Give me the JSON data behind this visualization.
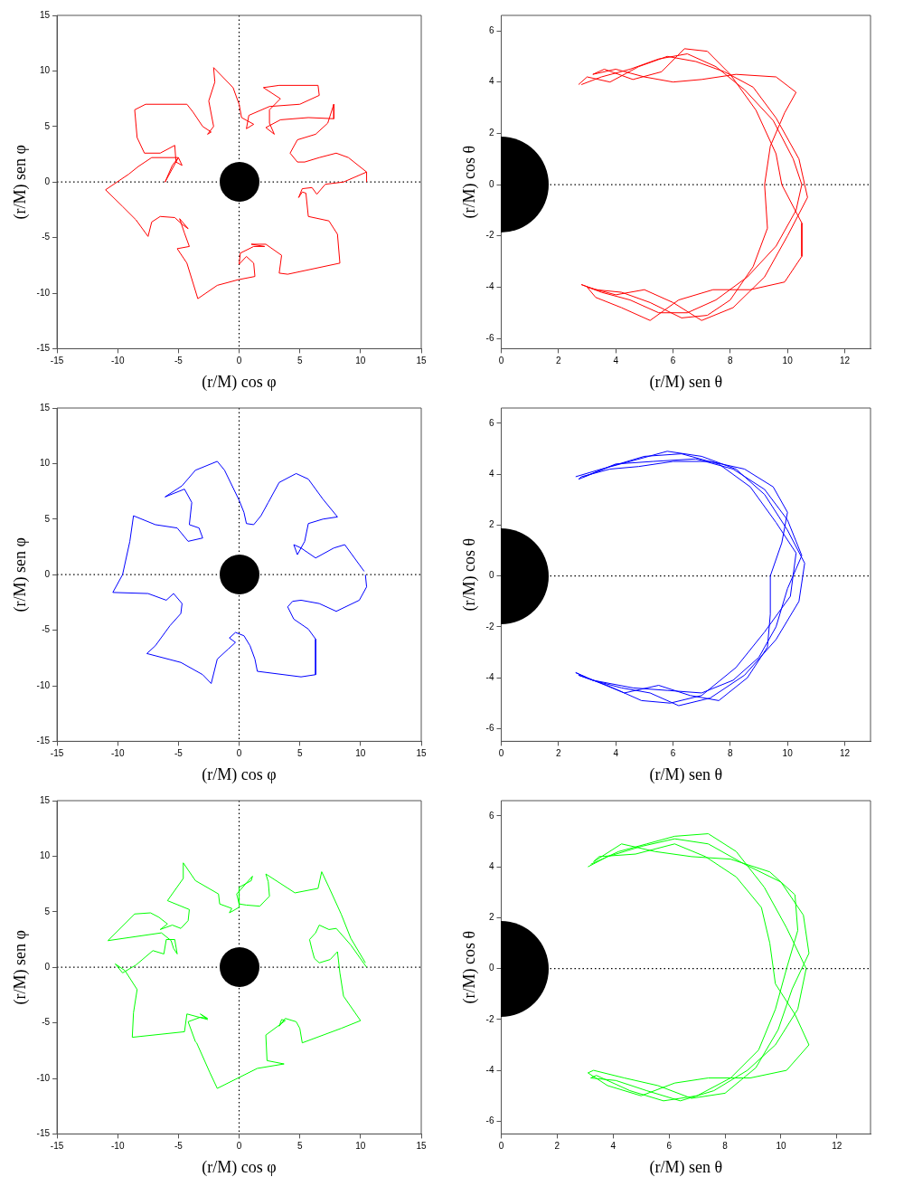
{
  "chart_data": [
    {
      "type": "line",
      "xlabel": "(r/M) cos φ",
      "ylabel": "(r/M) sen φ",
      "xlim": [
        -15,
        15
      ],
      "ylim": [
        -15,
        15
      ],
      "xticks": [
        -15,
        -10,
        -5,
        0,
        5,
        10,
        15
      ],
      "yticks": [
        -15,
        -10,
        -5,
        0,
        5,
        10,
        15
      ],
      "grid": false,
      "legend": false,
      "marker": "none",
      "line_style": "solid",
      "ref_lines": [
        {
          "axis": "x",
          "value": 0,
          "line_style": "dotted",
          "color": "#000000"
        },
        {
          "axis": "y",
          "value": 0,
          "line_style": "dotted",
          "color": "#000000"
        }
      ],
      "series": [
        {
          "color": "#ff0000",
          "x": [
            10.5,
            10.5,
            9,
            8,
            6.6,
            5.4,
            4.8,
            4.2,
            4.8,
            6.3,
            7.3,
            7.8,
            7.8,
            5.7,
            3.4,
            2.2,
            2.9,
            2.5,
            2.5,
            3.4,
            2,
            3.3,
            6.5,
            6.6,
            5,
            2.5,
            0.8,
            0.6,
            1.2,
            0.2,
            0,
            -0.5,
            -2.1,
            -2,
            -2.5,
            -2.1,
            -2.6,
            -2.3,
            -3,
            -3.8,
            -4.3,
            -7.7,
            -8.6,
            -8.4,
            -7.8,
            -6.5,
            -5.3,
            -5.2,
            -4.7,
            -5,
            -5.5,
            -6.1,
            -5,
            -7.2,
            -8.3,
            -9.1,
            -11,
            -9.6,
            -8.5,
            -7.5,
            -7.2,
            -6.5,
            -5.3,
            -4.7,
            -4.2,
            -4.9,
            -4.5,
            -4.1,
            -5.1,
            -4.3,
            -3.4,
            -1.8,
            -0.1,
            1.3,
            1.2,
            0.6,
            0,
            0.1,
            1.2,
            2.1,
            1,
            2.2,
            3.5,
            3.3,
            4,
            8.3,
            8.1,
            7.4,
            5.7,
            5.5,
            5.2,
            4.9,
            5.2,
            6,
            6.4,
            7.1,
            8.6,
            10.5
          ],
          "values": [
            0,
            0.9,
            2.2,
            2.6,
            2.2,
            1.8,
            1.8,
            2.6,
            3.8,
            4.3,
            5.3,
            7,
            5.7,
            5.8,
            5.6,
            4.9,
            4.3,
            5.3,
            6.5,
            7.5,
            8.5,
            8.7,
            8.7,
            7.8,
            7,
            6.8,
            6,
            4.8,
            5.2,
            5.8,
            7,
            8.5,
            10.3,
            9,
            7.3,
            5,
            4.3,
            4.5,
            5,
            6.3,
            7,
            7,
            6.5,
            4,
            2.6,
            2.6,
            3.3,
            1.8,
            1.5,
            2.2,
            1.5,
            0,
            2.2,
            2.2,
            1.4,
            0.7,
            -0.7,
            -2.2,
            -3.4,
            -4.9,
            -3.6,
            -3.1,
            -3.2,
            -3.8,
            -4.2,
            -3.3,
            -4.6,
            -5.8,
            -6,
            -7.3,
            -10.5,
            -9.3,
            -8.8,
            -8.5,
            -7.3,
            -6.7,
            -7.4,
            -6.4,
            -5.8,
            -5.8,
            -5.6,
            -5.6,
            -6.6,
            -8.2,
            -8.3,
            -7.3,
            -4.7,
            -3.5,
            -3.1,
            -1,
            -0.9,
            -1.4,
            -0.6,
            -0.5,
            -1.1,
            -0.2,
            0,
            0.9
          ]
        }
      ]
    },
    {
      "type": "line",
      "xlabel": "(r/M) sen θ",
      "ylabel": "(r/M) cos θ",
      "xlim": [
        0,
        12.9
      ],
      "ylim": [
        -6.4,
        6.6
      ],
      "xticks": [
        0,
        2,
        4,
        6,
        8,
        10,
        12
      ],
      "yticks": [
        -6,
        -4,
        -2,
        0,
        2,
        4,
        6
      ],
      "grid": false,
      "legend": false,
      "marker": "none",
      "line_style": "solid",
      "ref_lines": [
        {
          "axis": "y",
          "value": 0,
          "line_style": "dotted",
          "color": "#000000"
        }
      ],
      "series": [
        {
          "color": "#ff0000",
          "x": [
            2.8,
            3.5,
            4.5,
            5.5,
            6.5,
            7.5,
            8.5,
            9.5,
            10.2,
            10.5,
            10.3,
            9.6,
            8.6,
            7.5,
            6.5,
            5.5,
            4.5,
            3.5,
            2.8,
            3.3,
            4.2,
            5.2,
            6.3,
            7.2,
            8,
            8.8,
            9.3,
            9.2,
            9.4,
            9.9,
            10.3,
            9.6,
            8.2,
            7,
            6,
            5,
            4,
            3.2,
            3.6,
            4.6,
            5.6,
            6.4,
            7.2,
            8,
            8.9,
            9.6,
            9.8,
            10.5,
            10.5,
            9.9,
            8.7,
            7.4,
            6.2,
            5.2,
            4.2,
            3.3,
            3,
            4,
            5,
            6,
            7,
            8.1,
            9.2,
            10,
            10.7,
            10.4,
            9.6,
            8.8,
            7.8,
            6.8,
            5.8,
            4.8,
            3.8,
            3,
            2.7
          ],
          "values": [
            3.9,
            4.2,
            4.5,
            4.9,
            5.1,
            4.6,
            3.7,
            2.5,
            1,
            0,
            -1,
            -2.4,
            -3.6,
            -4.5,
            -5,
            -5,
            -4.5,
            -4.2,
            -3.9,
            -4.1,
            -4.2,
            -4.6,
            -5.2,
            -5.1,
            -4.5,
            -3.2,
            -1.7,
            0,
            1.5,
            2.8,
            3.6,
            4.2,
            4.3,
            4.1,
            4,
            4.2,
            4.5,
            4.3,
            4.5,
            4.1,
            4.4,
            5.3,
            5.2,
            4.3,
            2.9,
            1.2,
            0,
            -1.5,
            -2.8,
            -3.8,
            -4.1,
            -4.1,
            -4.5,
            -5.3,
            -4.8,
            -4.4,
            -4,
            -4.3,
            -4.1,
            -4.6,
            -5.3,
            -4.8,
            -3.6,
            -2,
            -0.5,
            1,
            2.6,
            3.8,
            4.4,
            4.8,
            5,
            4.6,
            4,
            4.2,
            3.9
          ]
        }
      ]
    },
    {
      "type": "line",
      "xlabel": "(r/M) cos φ",
      "ylabel": "(r/M) sen φ",
      "xlim": [
        -15,
        15
      ],
      "ylim": [
        -15,
        15
      ],
      "xticks": [
        -15,
        -10,
        -5,
        0,
        5,
        10,
        15
      ],
      "yticks": [
        -15,
        -10,
        -5,
        0,
        5,
        10,
        15
      ],
      "grid": false,
      "legend": false,
      "marker": "none",
      "line_style": "solid",
      "ref_lines": [
        {
          "axis": "x",
          "value": 0,
          "line_style": "dotted",
          "color": "#000000"
        },
        {
          "axis": "y",
          "value": 0,
          "line_style": "dotted",
          "color": "#000000"
        }
      ],
      "series": [
        {
          "color": "#0000ff",
          "x": [
            10.4,
            10.5,
            9.9,
            8,
            6.6,
            5.1,
            4.4,
            4,
            4.5,
            5.7,
            6.3,
            6.3,
            5.1,
            1.5,
            1.3,
            0.9,
            0.4,
            -0.3,
            -0.8,
            -0.3,
            -0.9,
            -1.8,
            -2.3,
            -3,
            -4.8,
            -7.6,
            -6.9,
            -5.7,
            -4.8,
            -4.7,
            -5.4,
            -6,
            -7.5,
            -10.4,
            -9.6,
            -9,
            -8.7,
            -6.9,
            -5.1,
            -4.2,
            -3,
            -3.3,
            -4.1,
            -3.9,
            -4.5,
            -6.1,
            -4.7,
            -3.6,
            -1.8,
            -1.2,
            0,
            0.4,
            0.6,
            1.2,
            1.8,
            2.4,
            3.3,
            4.7,
            5.7,
            6.9,
            8.1,
            6.9,
            5.7,
            5.4,
            4.8,
            4.5,
            5.1,
            6.3,
            7.8,
            8.7,
            9.9,
            10.3
          ],
          "values": [
            0,
            -1.1,
            -2.3,
            -3.3,
            -2.6,
            -2.3,
            -2.4,
            -2.9,
            -4,
            -4.9,
            -5.8,
            -9,
            -9.2,
            -8.7,
            -7.6,
            -6.4,
            -5.5,
            -5.2,
            -5.7,
            -6.1,
            -6.7,
            -7.6,
            -9.8,
            -9,
            -7.9,
            -7.1,
            -6.4,
            -4.6,
            -3.5,
            -2.6,
            -1.7,
            -2.3,
            -1.7,
            -1.6,
            0,
            3,
            5.3,
            4.5,
            4.2,
            3,
            3.3,
            4.2,
            4.5,
            6.5,
            7.7,
            7,
            8,
            9.4,
            10.2,
            9.4,
            6.7,
            5.6,
            4.6,
            4.5,
            5.3,
            6.5,
            8.3,
            9.1,
            8.6,
            6.8,
            5.2,
            5,
            4.6,
            3,
            1.8,
            2.7,
            2.4,
            1.5,
            2.4,
            2.7,
            0.9,
            0.3
          ]
        }
      ]
    },
    {
      "type": "line",
      "xlabel": "(r/M) sen θ",
      "ylabel": "(r/M) cos θ",
      "xlim": [
        0,
        12.9
      ],
      "ylim": [
        -6.5,
        6.6
      ],
      "xticks": [
        0,
        2,
        4,
        6,
        8,
        10,
        12
      ],
      "yticks": [
        -6,
        -4,
        -2,
        0,
        2,
        4,
        6
      ],
      "grid": false,
      "legend": false,
      "marker": "none",
      "line_style": "solid",
      "ref_lines": [
        {
          "axis": "y",
          "value": 0,
          "line_style": "dotted",
          "color": "#000000"
        }
      ],
      "series": [
        {
          "color": "#0000ff",
          "x": [
            2.6,
            3.5,
            4.5,
            5.8,
            7,
            8.2,
            9.2,
            10,
            10.6,
            10.4,
            9.6,
            8.5,
            7.3,
            6.2,
            5.2,
            4.2,
            3.2,
            2.6,
            3,
            4.3,
            5.5,
            6.6,
            7.6,
            8.6,
            9.3,
            9.4,
            9.4,
            9.8,
            10,
            9.5,
            8.5,
            7.3,
            6,
            4.8,
            3.8,
            2.8,
            2.7,
            3.8,
            5,
            6.3,
            7.6,
            8.7,
            9.6,
            10.3,
            10.1,
            9.2,
            8.2,
            7,
            5.9,
            4.9,
            3.7,
            2.7,
            3.2,
            4.6,
            5.8,
            7,
            8.1,
            9,
            9.6,
            10,
            10.5,
            10,
            9.2,
            8.1,
            6.8,
            5.3,
            4,
            2.9
          ],
          "values": [
            3.9,
            4.2,
            4.5,
            4.9,
            4.7,
            4.2,
            3.2,
            1.8,
            0.5,
            -1,
            -2.5,
            -3.9,
            -4.8,
            -5.1,
            -4.6,
            -4.4,
            -4.1,
            -3.8,
            -4,
            -4.6,
            -4.3,
            -4.7,
            -4.9,
            -4,
            -2.8,
            -1.5,
            0,
            1.3,
            2.5,
            3.5,
            4.2,
            4.5,
            4.5,
            4.3,
            4.2,
            3.9,
            3.8,
            4.3,
            4.7,
            4.8,
            4.4,
            3.5,
            2.1,
            0.9,
            -0.8,
            -2.2,
            -3.6,
            -4.7,
            -5,
            -4.9,
            -4.3,
            -3.9,
            -4.1,
            -4.4,
            -4.5,
            -4.6,
            -4.1,
            -3.2,
            -2,
            -0.5,
            0.8,
            2.2,
            3.4,
            4.2,
            4.6,
            4.5,
            4.4,
            3.9
          ]
        }
      ]
    },
    {
      "type": "line",
      "xlabel": "(r/M) cos φ",
      "ylabel": "(r/M) sen φ",
      "xlim": [
        -15,
        15
      ],
      "ylim": [
        -15,
        15
      ],
      "xticks": [
        -15,
        -10,
        -5,
        0,
        5,
        10,
        15
      ],
      "yticks": [
        -15,
        -10,
        -5,
        0,
        5,
        10,
        15
      ],
      "grid": false,
      "legend": false,
      "marker": "none",
      "line_style": "solid",
      "ref_lines": [
        {
          "axis": "x",
          "value": 0,
          "line_style": "dotted",
          "color": "#000000"
        },
        {
          "axis": "y",
          "value": 0,
          "line_style": "dotted",
          "color": "#000000"
        }
      ],
      "series": [
        {
          "color": "#00ff00",
          "x": [
            10.5,
            9.2,
            8,
            7.4,
            6.6,
            6.3,
            5.8,
            6,
            6.2,
            6.6,
            7.5,
            8.1,
            8.3,
            8.6,
            10,
            8.4,
            5.2,
            5,
            4.7,
            3.8,
            3.3,
            3.5,
            3.8,
            2.2,
            2.3,
            3.7,
            1.5,
            -1.8,
            -2.4,
            -3.5,
            -3.6,
            -4.2,
            -3.2,
            -2.6,
            -3.2,
            -2.6,
            -4.3,
            -4.5,
            -8.8,
            -8.7,
            -8.4,
            -9.4,
            -10.2,
            -9.6,
            -8.5,
            -7.1,
            -6.2,
            -6,
            -5.3,
            -5.1,
            -5.4,
            -5.6,
            -6.4,
            -10.8,
            -8.6,
            -7.3,
            -6.6,
            -5.9,
            -6.5,
            -5.5,
            -4.8,
            -4.2,
            -4.1,
            -5.9,
            -4.6,
            -4.6,
            -3.6,
            -1.7,
            -1.6,
            -0.6,
            -0.8,
            0,
            0,
            1,
            1.1,
            -0.2,
            0,
            0.6,
            1.7,
            2.5,
            2.4,
            2.2,
            4.6,
            6.5,
            6.8,
            7.4,
            8.4,
            9.2,
            10.4
          ],
          "values": [
            0,
            2,
            3.5,
            3.4,
            3.8,
            3.1,
            2.5,
            1.6,
            0.8,
            0.4,
            0.7,
            1.4,
            -0.5,
            -2.6,
            -4.8,
            -5.5,
            -6.8,
            -5.5,
            -4.9,
            -4.6,
            -5.3,
            -4.7,
            -4.8,
            -6.1,
            -8.4,
            -8.7,
            -9.1,
            -10.9,
            -9.5,
            -6.8,
            -6.7,
            -4.9,
            -4.5,
            -4.6,
            -4.2,
            -4.7,
            -4.2,
            -5.8,
            -6.3,
            -4.1,
            -2,
            -0.3,
            0.3,
            -0.5,
            0.2,
            1.5,
            1.2,
            2.5,
            2.5,
            1.2,
            1.7,
            2.4,
            3.1,
            2.4,
            4.8,
            4.9,
            4.5,
            3.9,
            3.4,
            3.8,
            3.5,
            4.2,
            5.2,
            6,
            8,
            9.4,
            7.8,
            6.6,
            5.7,
            5.3,
            4.9,
            5.4,
            7.2,
            7.8,
            8.2,
            6.6,
            5.7,
            5.6,
            5.5,
            6.4,
            7.7,
            8.4,
            6.7,
            7.1,
            8.6,
            7.2,
            4.8,
            2.6,
            0.4
          ]
        }
      ]
    },
    {
      "type": "line",
      "xlabel": "(r/M) sen θ",
      "ylabel": "(r/M) cos θ",
      "xlim": [
        0,
        13.2
      ],
      "ylim": [
        -6.5,
        6.6
      ],
      "xticks": [
        0,
        2,
        4,
        6,
        8,
        10,
        12
      ],
      "yticks": [
        -6,
        -4,
        -2,
        0,
        2,
        4,
        6
      ],
      "grid": false,
      "legend": false,
      "marker": "none",
      "line_style": "solid",
      "ref_lines": [
        {
          "axis": "y",
          "value": 0,
          "line_style": "dotted",
          "color": "#000000"
        }
      ],
      "series": [
        {
          "color": "#00ff00",
          "x": [
            3.2,
            4.2,
            5.2,
            6.2,
            7.4,
            8.4,
            9.4,
            10.2,
            10.9,
            10.6,
            9.8,
            8.8,
            7.6,
            6.4,
            5.2,
            4.1,
            3.2,
            3.4,
            4.6,
            5.8,
            7,
            8.2,
            9.2,
            9.8,
            10.2,
            10.6,
            10.5,
            9.6,
            8.2,
            6.8,
            5.5,
            4.3,
            3.3,
            3.5,
            4.8,
            6.2,
            7.3,
            8.4,
            9.3,
            9.6,
            9.8,
            10.5,
            11,
            10.2,
            8.9,
            7.4,
            6.2,
            5,
            3.8,
            3.1,
            3.3,
            4.4,
            5.6,
            6.8,
            8,
            9.1,
            9.9,
            10.4,
            11,
            10.8,
            10,
            8.7,
            7.4,
            6.2,
            5,
            3.8,
            3.1
          ],
          "values": [
            4.1,
            4.6,
            4.9,
            5.2,
            5.3,
            4.6,
            3.2,
            1.6,
            0,
            -1.6,
            -3,
            -4,
            -4.8,
            -5.2,
            -4.8,
            -4.4,
            -4.3,
            -4.2,
            -4.8,
            -5.2,
            -5,
            -4.3,
            -3.2,
            -1.6,
            0,
            1.5,
            2.9,
            3.8,
            4.3,
            4.4,
            4.6,
            4.9,
            4.2,
            4.4,
            4.5,
            4.9,
            4.4,
            3.6,
            2.4,
            1,
            -0.6,
            -1.8,
            -3,
            -4,
            -4.3,
            -4.3,
            -4.5,
            -5,
            -4.6,
            -4.1,
            -4,
            -4.3,
            -4.6,
            -5.1,
            -4.9,
            -3.9,
            -2.4,
            -0.8,
            0.6,
            2.1,
            3.4,
            4.1,
            4.9,
            5.1,
            4.8,
            4.4,
            4
          ]
        }
      ]
    }
  ]
}
